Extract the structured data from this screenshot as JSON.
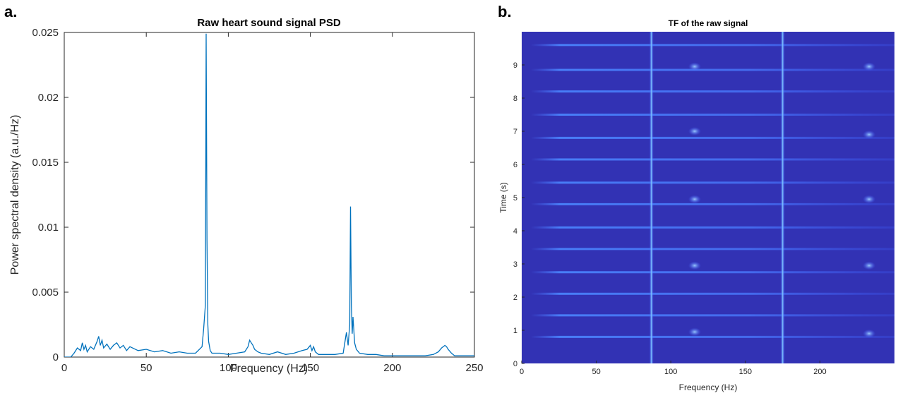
{
  "panel_a_letter": "a.",
  "panel_b_letter": "b.",
  "chart_data": [
    {
      "type": "line",
      "title": "Raw heart sound signal PSD",
      "xlabel": "Frequency (Hz)",
      "ylabel": "Power spectral density (a.u./Hz)",
      "xlim": [
        0,
        250
      ],
      "ylim": [
        0,
        0.025
      ],
      "x_ticks": [
        "0",
        "50",
        "100",
        "150",
        "200",
        "250"
      ],
      "y_ticks": [
        "0",
        "0.005",
        "0.01",
        "0.015",
        "0.02",
        "0.025"
      ],
      "grid": false,
      "color": "#0072BD",
      "series": [
        {
          "x": [
            0,
            4,
            6,
            8,
            10,
            11,
            12,
            13,
            14,
            16,
            18,
            20,
            21,
            22,
            23,
            24,
            26,
            28,
            30,
            32,
            34,
            36,
            38,
            40,
            45,
            50,
            55,
            60,
            65,
            70,
            75,
            80,
            84,
            85,
            86,
            86.5,
            87,
            87.5,
            88,
            89,
            90,
            95,
            100,
            105,
            110,
            112,
            113,
            114,
            115,
            116,
            118,
            120,
            125,
            130,
            135,
            140,
            145,
            148,
            150,
            151,
            152,
            153,
            155,
            160,
            165,
            170,
            172,
            173,
            174,
            174.5,
            175,
            175.5,
            176,
            177,
            178,
            180,
            185,
            190,
            195,
            200,
            205,
            210,
            215,
            220,
            225,
            228,
            230,
            232,
            233,
            234,
            236,
            238,
            240,
            245,
            250
          ],
          "y": [
            0,
            0,
            0.0003,
            0.0007,
            0.0005,
            0.0011,
            0.0006,
            0.0009,
            0.0004,
            0.0008,
            0.0006,
            0.0012,
            0.0016,
            0.0009,
            0.0013,
            0.0007,
            0.001,
            0.0006,
            0.0009,
            0.0011,
            0.0007,
            0.0009,
            0.0005,
            0.0008,
            0.0005,
            0.0006,
            0.0004,
            0.0005,
            0.0003,
            0.0004,
            0.0003,
            0.0003,
            0.0008,
            0.0022,
            0.004,
            0.0249,
            0.009,
            0.0025,
            0.0012,
            0.0005,
            0.0003,
            0.0003,
            0.0002,
            0.0003,
            0.0004,
            0.0008,
            0.0013,
            0.0011,
            0.0009,
            0.0006,
            0.0004,
            0.0003,
            0.0002,
            0.0004,
            0.0002,
            0.0003,
            0.0005,
            0.0006,
            0.0009,
            0.0005,
            0.0008,
            0.0004,
            0.0002,
            0.0002,
            0.0002,
            0.0003,
            0.0019,
            0.0009,
            0.0025,
            0.0116,
            0.004,
            0.0018,
            0.0031,
            0.0011,
            0.0006,
            0.0003,
            0.0002,
            0.0002,
            0.0001,
            0.0001,
            0.0001,
            0.0001,
            0.0001,
            0.0001,
            0.0002,
            0.0004,
            0.0007,
            0.0009,
            0.0008,
            0.0006,
            0.0003,
            0.0001,
            0.0001,
            0.0001,
            0.0001
          ]
        }
      ]
    },
    {
      "type": "heatmap",
      "title": "TF of the raw signal",
      "xlabel": "Frequency (Hz)",
      "ylabel": "Time (s)",
      "xlim": [
        0,
        250
      ],
      "ylim": [
        0,
        10
      ],
      "x_ticks": [
        "0",
        "50",
        "100",
        "150",
        "200"
      ],
      "y_ticks": [
        "0",
        "1",
        "2",
        "3",
        "4",
        "5",
        "6",
        "7",
        "8",
        "9"
      ],
      "colormap": "parula",
      "background_color": "#3232b4",
      "vertical_lines_hz": [
        87,
        175
      ],
      "horizontal_band_times_s": [
        0.8,
        1.45,
        2.1,
        2.75,
        3.45,
        4.1,
        4.8,
        5.45,
        6.15,
        6.8,
        7.5,
        8.2,
        8.85,
        9.6
      ],
      "hotspot_points": [
        {
          "x": 116,
          "t": 0.95
        },
        {
          "x": 116,
          "t": 2.95
        },
        {
          "x": 116,
          "t": 4.95
        },
        {
          "x": 116,
          "t": 7.0
        },
        {
          "x": 116,
          "t": 8.95
        },
        {
          "x": 233,
          "t": 0.9
        },
        {
          "x": 233,
          "t": 2.95
        },
        {
          "x": 233,
          "t": 4.95
        },
        {
          "x": 233,
          "t": 6.9
        },
        {
          "x": 233,
          "t": 8.95
        }
      ]
    }
  ]
}
